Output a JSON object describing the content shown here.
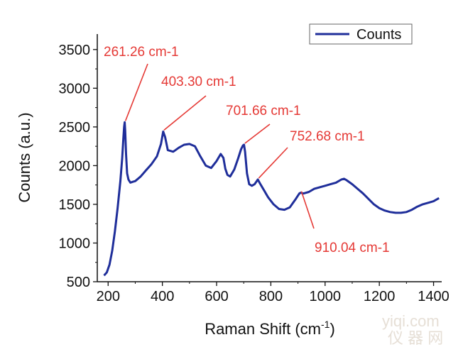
{
  "chart_data": {
    "type": "line",
    "xlabel": "Raman Shift (cm",
    "xlabel_superscript": "-1",
    "xlabel_close": ")",
    "ylabel": "Counts (a.u.)",
    "xlim": [
      160,
      1430
    ],
    "ylim": [
      500,
      3700
    ],
    "xticks": [
      200,
      400,
      600,
      800,
      1000,
      1200,
      1400
    ],
    "yticks": [
      500,
      1000,
      1500,
      2000,
      2500,
      3000,
      3500
    ],
    "grid": false,
    "legend": "top-right",
    "series": [
      {
        "name": "Counts",
        "color": "#1f2e9a",
        "x": [
          185,
          195,
          205,
          215,
          225,
          235,
          245,
          252,
          256,
          259,
          261,
          263,
          266,
          270,
          275,
          282,
          290,
          300,
          320,
          340,
          360,
          380,
          395,
          403,
          410,
          420,
          440,
          460,
          480,
          500,
          520,
          540,
          560,
          580,
          600,
          615,
          625,
          632,
          640,
          650,
          665,
          680,
          690,
          697,
          701,
          705,
          712,
          720,
          730,
          740,
          752,
          760,
          775,
          790,
          810,
          830,
          850,
          870,
          890,
          905,
          910,
          920,
          940,
          960,
          980,
          1000,
          1020,
          1040,
          1060,
          1070,
          1080,
          1100,
          1120,
          1140,
          1160,
          1180,
          1200,
          1220,
          1240,
          1260,
          1280,
          1300,
          1320,
          1340,
          1360,
          1380,
          1400,
          1420
        ],
        "y": [
          580,
          620,
          720,
          900,
          1150,
          1450,
          1800,
          2100,
          2350,
          2500,
          2560,
          2450,
          2150,
          1900,
          1820,
          1780,
          1790,
          1800,
          1860,
          1940,
          2020,
          2120,
          2280,
          2440,
          2370,
          2200,
          2180,
          2230,
          2270,
          2280,
          2250,
          2120,
          2000,
          1970,
          2060,
          2150,
          2100,
          1960,
          1880,
          1860,
          1950,
          2100,
          2210,
          2260,
          2270,
          2180,
          1900,
          1760,
          1740,
          1760,
          1820,
          1770,
          1680,
          1590,
          1500,
          1440,
          1430,
          1460,
          1560,
          1640,
          1650,
          1640,
          1660,
          1700,
          1720,
          1740,
          1760,
          1780,
          1820,
          1830,
          1810,
          1760,
          1700,
          1640,
          1570,
          1500,
          1450,
          1420,
          1400,
          1390,
          1390,
          1400,
          1430,
          1470,
          1500,
          1520,
          1540,
          1580
        ]
      }
    ],
    "annotations": [
      {
        "text": "261.26 cm-1",
        "x": 261.26,
        "y": 2560,
        "color": "#e53935",
        "label_anchor": "top-left"
      },
      {
        "text": "403.30 cm-1",
        "x": 403.3,
        "y": 2440,
        "color": "#e53935",
        "label_anchor": "top"
      },
      {
        "text": "701.66 cm-1",
        "x": 701.66,
        "y": 2270,
        "color": "#e53935",
        "label_anchor": "top"
      },
      {
        "text": "752.68 cm-1",
        "x": 752.68,
        "y": 1820,
        "color": "#e53935",
        "label_anchor": "right"
      },
      {
        "text": "910.04 cm-1",
        "x": 910.04,
        "y": 1650,
        "color": "#e53935",
        "label_anchor": "bottom-right"
      }
    ]
  },
  "watermark": {
    "line1": "yiqi.com",
    "line2": "仪 器 网"
  }
}
